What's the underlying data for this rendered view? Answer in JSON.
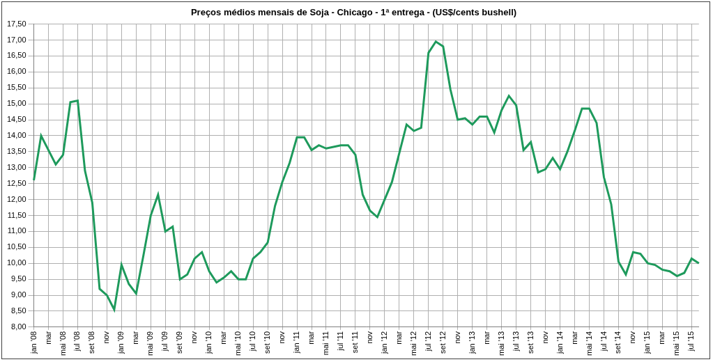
{
  "chart_data": {
    "type": "line",
    "title": "Preços médios mensais de Soja - Chicago - 1ª entrega - (US$/cents bushell)",
    "categories": [
      "jan '08",
      null,
      "mar",
      null,
      "mai '08",
      null,
      "jul '08",
      null,
      "set '08",
      null,
      "nov",
      null,
      "jan '09",
      null,
      "mar",
      null,
      "mai '09",
      null,
      "jul '09",
      null,
      "set '09",
      null,
      "nov",
      null,
      "jan '10",
      null,
      "mar",
      null,
      "mai '10",
      null,
      "jul '10",
      null,
      "set '10",
      null,
      "nov",
      null,
      "jan '11",
      null,
      "mar",
      null,
      "mai '11",
      null,
      "jul '11",
      null,
      "set '11",
      null,
      "nov",
      null,
      "jan '12",
      null,
      "mar",
      null,
      "mai '12",
      null,
      "jul '12",
      null,
      "set '12",
      null,
      "nov",
      null,
      "jan '13",
      null,
      "mar",
      null,
      "mai '13",
      null,
      "jul '13",
      null,
      "set '13",
      null,
      "nov",
      null,
      "jan '14",
      null,
      "mar",
      null,
      "mai '14",
      null,
      "jul '14",
      null,
      "set '14",
      null,
      "nov",
      null,
      "jan '15",
      null,
      "mar",
      null,
      "mai '15",
      null,
      "jul '15",
      null
    ],
    "values": [
      12.6,
      14.0,
      13.55,
      13.1,
      13.4,
      15.05,
      15.1,
      12.9,
      11.9,
      9.2,
      9.0,
      8.55,
      9.95,
      9.35,
      9.05,
      10.25,
      11.5,
      12.15,
      11.0,
      11.15,
      9.5,
      9.65,
      10.15,
      10.35,
      9.75,
      9.4,
      9.55,
      9.75,
      9.5,
      9.5,
      10.15,
      10.35,
      10.65,
      11.8,
      12.55,
      13.15,
      13.95,
      13.95,
      13.55,
      13.7,
      13.6,
      13.65,
      13.7,
      13.7,
      13.4,
      12.15,
      11.65,
      11.45,
      12.0,
      12.55,
      13.45,
      14.35,
      14.15,
      14.25,
      16.6,
      16.95,
      16.8,
      15.45,
      14.5,
      14.55,
      14.35,
      14.6,
      14.6,
      14.1,
      14.8,
      15.25,
      14.95,
      13.55,
      13.8,
      12.85,
      12.95,
      13.3,
      12.95,
      13.5,
      14.15,
      14.85,
      14.85,
      14.4,
      12.7,
      11.85,
      10.05,
      9.65,
      10.35,
      10.3,
      10.0,
      9.95,
      9.8,
      9.75,
      9.6,
      9.7,
      10.15,
      10.0
    ],
    "color": "#1e9a5c",
    "ylim": [
      8,
      17.5
    ],
    "yticks": [
      {
        "value": 8,
        "label": "8,00"
      },
      {
        "value": 8.5,
        "label": "8,50"
      },
      {
        "value": 9,
        "label": "9,00"
      },
      {
        "value": 9.5,
        "label": "9,50"
      },
      {
        "value": 10,
        "label": "10,00"
      },
      {
        "value": 10.5,
        "label": "10,50"
      },
      {
        "value": 11,
        "label": "11,00"
      },
      {
        "value": 11.5,
        "label": "11,50"
      },
      {
        "value": 12,
        "label": "12,00"
      },
      {
        "value": 12.5,
        "label": "12,50"
      },
      {
        "value": 13,
        "label": "13,00"
      },
      {
        "value": 13.5,
        "label": "13,50"
      },
      {
        "value": 14,
        "label": "14,00"
      },
      {
        "value": 14.5,
        "label": "14,50"
      },
      {
        "value": 15,
        "label": "15,00"
      },
      {
        "value": 15.5,
        "label": "15,50"
      },
      {
        "value": 16,
        "label": "16,00"
      },
      {
        "value": 16.5,
        "label": "16,50"
      },
      {
        "value": 17,
        "label": "17,00"
      },
      {
        "value": 17.5,
        "label": "17,50"
      }
    ],
    "grid": true
  }
}
